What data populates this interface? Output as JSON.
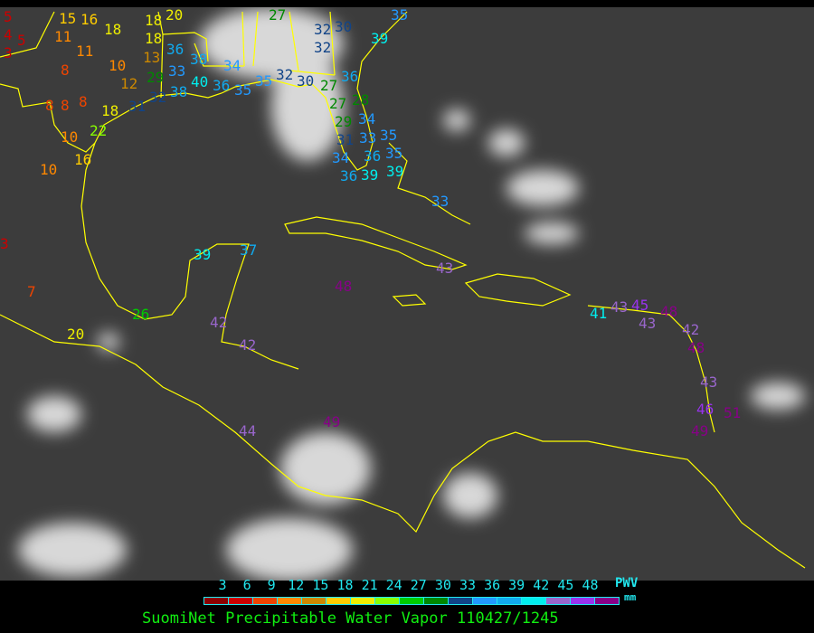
{
  "legend": {
    "ticks": [
      "3",
      "6",
      "9",
      "12",
      "15",
      "18",
      "21",
      "24",
      "27",
      "30",
      "33",
      "36",
      "39",
      "42",
      "45",
      "48"
    ],
    "unit_top": "PWV",
    "unit_bottom": "mm",
    "colors": [
      "#8b0000",
      "#cc0000",
      "#ee4400",
      "#ff8800",
      "#cc8800",
      "#ffcc00",
      "#eeee00",
      "#88ff00",
      "#00cc00",
      "#008800",
      "#114488",
      "#2299ff",
      "#11aaee",
      "#00eeee",
      "#9966cc",
      "#9933ee",
      "#880088"
    ]
  },
  "title": "SuomiNet Precipitable Water Vapor 110427/1245",
  "map": {
    "background": "#3c3c3c",
    "coastline_color": "#ffff00",
    "station_values": [
      5,
      4,
      5,
      3,
      11,
      16,
      18,
      18,
      18,
      11,
      8,
      10,
      13,
      29,
      36,
      38,
      33,
      40,
      12,
      32,
      38,
      31,
      34,
      36,
      35,
      35,
      32,
      30,
      27,
      27,
      29,
      28,
      36,
      34,
      31,
      33,
      35,
      36,
      35,
      34,
      36,
      39,
      39,
      32,
      30,
      32,
      39,
      35,
      8,
      8,
      8,
      18,
      22,
      10,
      16,
      10,
      3,
      7,
      20,
      26,
      39,
      37,
      42,
      42,
      44,
      49,
      48,
      33,
      43,
      41,
      43,
      45,
      43,
      48,
      42,
      48,
      43,
      46,
      51,
      49,
      27,
      20,
      15
    ]
  }
}
